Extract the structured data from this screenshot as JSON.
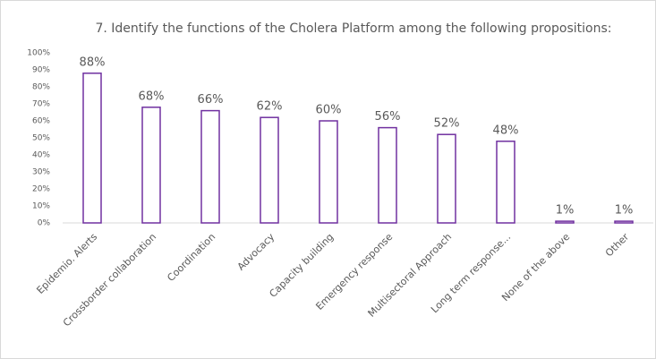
{
  "chart_data": {
    "type": "bar",
    "title": "7. Identify the functions of the Cholera Platform among the following propositions:",
    "categories": [
      "Epidemio. Alerts",
      "Crossborder collaboration",
      "Coordination",
      "Advocacy",
      "Capacity building",
      "Emergency response",
      "Multisectoral Approach",
      "Long term response...",
      "None of the above",
      "Other"
    ],
    "values": [
      88,
      68,
      66,
      62,
      60,
      56,
      52,
      48,
      1,
      1
    ],
    "value_labels": [
      "88%",
      "68%",
      "66%",
      "62%",
      "60%",
      "56%",
      "52%",
      "48%",
      "1%",
      "1%"
    ],
    "color": "#7030a0",
    "ylim": [
      0,
      100
    ],
    "yticks": [
      {
        "value": 0,
        "label": "0%"
      },
      {
        "value": 10,
        "label": "10%"
      },
      {
        "value": 20,
        "label": "20%"
      },
      {
        "value": 30,
        "label": "30%"
      },
      {
        "value": 40,
        "label": "40%"
      },
      {
        "value": 50,
        "label": "50%"
      },
      {
        "value": 60,
        "label": "60%"
      },
      {
        "value": 70,
        "label": "70%"
      },
      {
        "value": 80,
        "label": "80%"
      },
      {
        "value": 90,
        "label": "90%"
      },
      {
        "value": 100,
        "label": "100%"
      }
    ],
    "grid": false
  }
}
